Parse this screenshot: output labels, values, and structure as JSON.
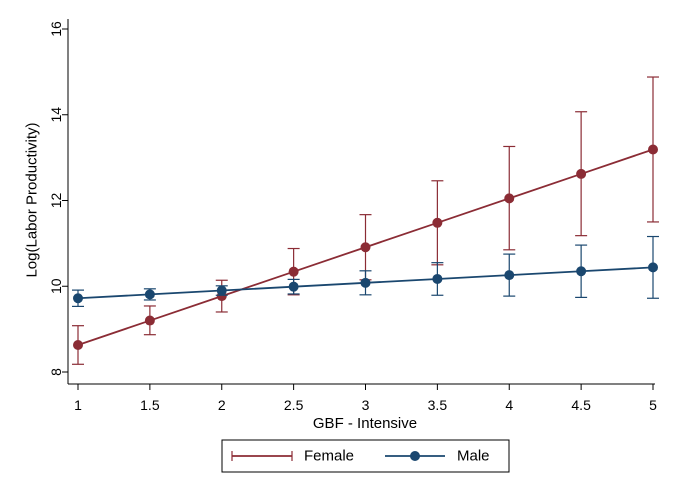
{
  "chart_data": {
    "type": "line",
    "title": "",
    "xlabel": "GBF - Intensive",
    "ylabel": "Log(Labor Productivity)",
    "x": [
      1,
      1.5,
      2,
      2.5,
      3,
      3.5,
      4,
      4.5,
      5
    ],
    "x_ticks": [
      "1",
      "1.5",
      "2",
      "2.5",
      "3",
      "3.5",
      "4",
      "4.5",
      "5"
    ],
    "y_ticks": [
      "8",
      "10",
      "12",
      "14",
      "16"
    ],
    "xlim": [
      1,
      5
    ],
    "ylim": [
      8,
      16
    ],
    "grid": false,
    "legend_position": "bottom",
    "series": [
      {
        "name": "Female",
        "color": "#8b2c35",
        "marker": "circle",
        "values": [
          8.63,
          9.2,
          9.77,
          10.34,
          10.91,
          11.48,
          12.05,
          12.62,
          13.19
        ],
        "ci_low": [
          8.18,
          8.87,
          9.4,
          9.8,
          10.15,
          10.5,
          10.85,
          11.18,
          11.5
        ],
        "ci_high": [
          9.08,
          9.54,
          10.14,
          10.88,
          11.67,
          12.46,
          13.26,
          14.07,
          14.88
        ]
      },
      {
        "name": "Male",
        "color": "#1a476f",
        "marker": "circle",
        "values": [
          9.72,
          9.81,
          9.9,
          9.99,
          10.08,
          10.17,
          10.26,
          10.35,
          10.44
        ],
        "ci_low": [
          9.53,
          9.68,
          9.79,
          9.82,
          9.8,
          9.79,
          9.77,
          9.74,
          9.72
        ],
        "ci_high": [
          9.91,
          9.94,
          10.01,
          10.16,
          10.36,
          10.55,
          10.75,
          10.96,
          11.16
        ]
      }
    ]
  }
}
